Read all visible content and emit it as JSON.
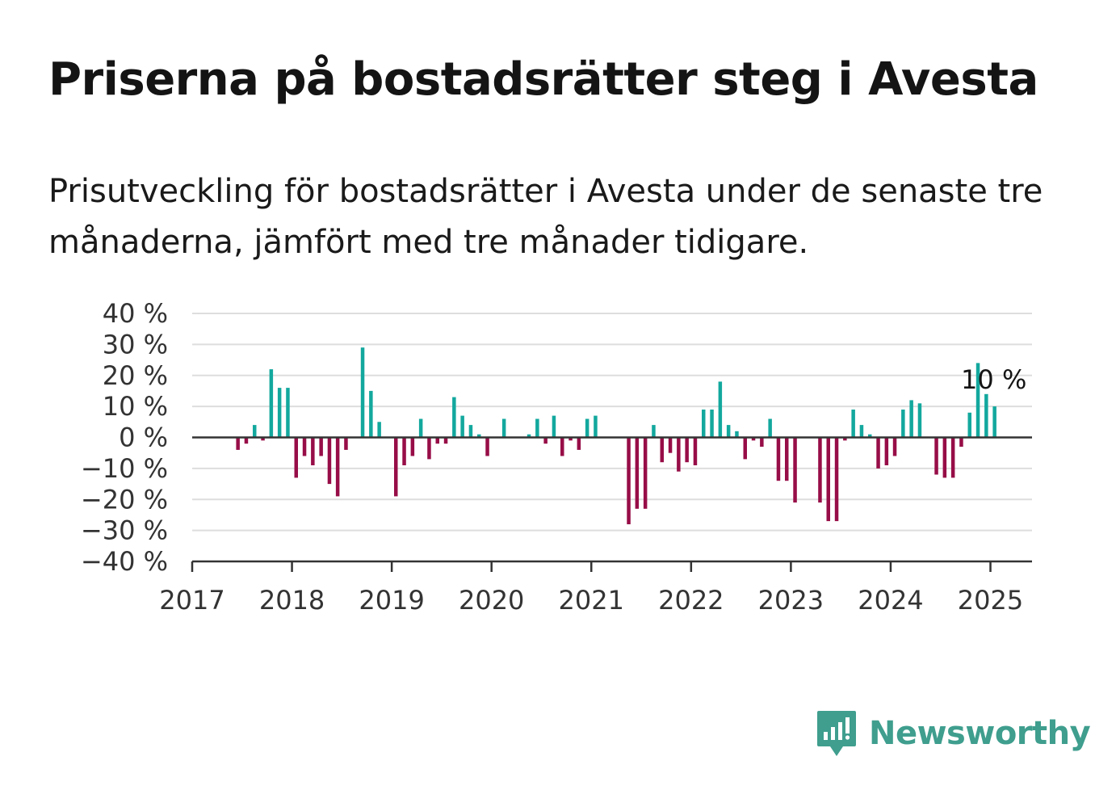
{
  "title": "Priserna på bostadsrätter steg i Avesta",
  "subtitle": "Prisutveckling för bostadsrätter i Avesta under de senaste tre månaderna, jämfört med tre månader tidigare.",
  "brand": "Newsworthy",
  "colors": {
    "positive": "#13a89e",
    "negative": "#970d47",
    "grid": "#dddddd",
    "axis": "#333333",
    "brand": "#3f9e8e"
  },
  "chart_data": {
    "type": "bar",
    "ylim": [
      -40,
      40
    ],
    "y_ticks": [
      40,
      30,
      20,
      10,
      0,
      -10,
      -20,
      -30,
      -40
    ],
    "y_tick_labels": [
      "40 %",
      "30 %",
      "20 %",
      "10 %",
      "0 %",
      "−10 %",
      "−20 %",
      "−30 %",
      "−40 %"
    ],
    "x_tick_labels": [
      "2017",
      "2018",
      "2019",
      "2020",
      "2021",
      "2022",
      "2023",
      "2024",
      "2025"
    ],
    "x_start": "2017-01",
    "x_end": "2025-06",
    "grid": true,
    "annotation": "10 %",
    "data": [
      [
        "2017-06",
        -4
      ],
      [
        "2017-07",
        -2
      ],
      [
        "2017-08",
        4
      ],
      [
        "2017-09",
        -1
      ],
      [
        "2017-10",
        22
      ],
      [
        "2017-11",
        16
      ],
      [
        "2017-12",
        16
      ],
      [
        "2018-01",
        -13
      ],
      [
        "2018-02",
        -6
      ],
      [
        "2018-03",
        -9
      ],
      [
        "2018-04",
        -6
      ],
      [
        "2018-05",
        -15
      ],
      [
        "2018-06",
        -19
      ],
      [
        "2018-07",
        -4
      ],
      [
        "2018-09",
        29
      ],
      [
        "2018-10",
        15
      ],
      [
        "2018-11",
        5
      ],
      [
        "2019-01",
        -19
      ],
      [
        "2019-02",
        -9
      ],
      [
        "2019-03",
        -6
      ],
      [
        "2019-04",
        6
      ],
      [
        "2019-05",
        -7
      ],
      [
        "2019-06",
        -2
      ],
      [
        "2019-07",
        -2
      ],
      [
        "2019-08",
        13
      ],
      [
        "2019-09",
        7
      ],
      [
        "2019-10",
        4
      ],
      [
        "2019-11",
        1
      ],
      [
        "2019-12",
        -6
      ],
      [
        "2020-02",
        6
      ],
      [
        "2020-05",
        1
      ],
      [
        "2020-06",
        6
      ],
      [
        "2020-07",
        -2
      ],
      [
        "2020-08",
        7
      ],
      [
        "2020-09",
        -6
      ],
      [
        "2020-10",
        -1
      ],
      [
        "2020-11",
        -4
      ],
      [
        "2020-12",
        6
      ],
      [
        "2021-01",
        7
      ],
      [
        "2021-05",
        -28
      ],
      [
        "2021-06",
        -23
      ],
      [
        "2021-07",
        -23
      ],
      [
        "2021-08",
        4
      ],
      [
        "2021-09",
        -8
      ],
      [
        "2021-10",
        -5
      ],
      [
        "2021-11",
        -11
      ],
      [
        "2021-12",
        -8
      ],
      [
        "2022-01",
        -9
      ],
      [
        "2022-02",
        9
      ],
      [
        "2022-03",
        9
      ],
      [
        "2022-04",
        18
      ],
      [
        "2022-05",
        4
      ],
      [
        "2022-06",
        2
      ],
      [
        "2022-07",
        -7
      ],
      [
        "2022-08",
        -1
      ],
      [
        "2022-09",
        -3
      ],
      [
        "2022-10",
        6
      ],
      [
        "2022-11",
        -14
      ],
      [
        "2022-12",
        -14
      ],
      [
        "2023-01",
        -21
      ],
      [
        "2023-04",
        -21
      ],
      [
        "2023-05",
        -27
      ],
      [
        "2023-06",
        -27
      ],
      [
        "2023-07",
        -1
      ],
      [
        "2023-08",
        9
      ],
      [
        "2023-09",
        4
      ],
      [
        "2023-10",
        1
      ],
      [
        "2023-11",
        -10
      ],
      [
        "2023-12",
        -9
      ],
      [
        "2024-01",
        -6
      ],
      [
        "2024-02",
        9
      ],
      [
        "2024-03",
        12
      ],
      [
        "2024-04",
        11
      ],
      [
        "2024-06",
        -12
      ],
      [
        "2024-07",
        -13
      ],
      [
        "2024-08",
        -13
      ],
      [
        "2024-09",
        -3
      ],
      [
        "2024-10",
        8
      ],
      [
        "2024-11",
        24
      ],
      [
        "2024-12",
        14
      ],
      [
        "2025-01",
        10
      ]
    ]
  }
}
